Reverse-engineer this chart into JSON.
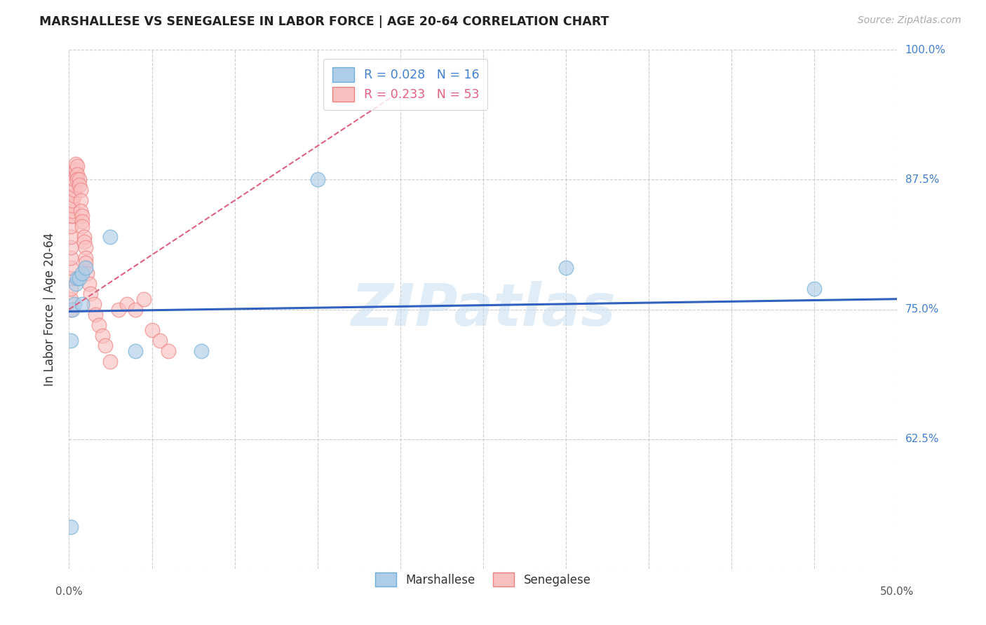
{
  "title": "MARSHALLESE VS SENEGALESE IN LABOR FORCE | AGE 20-64 CORRELATION CHART",
  "source": "Source: ZipAtlas.com",
  "ylabel": "In Labor Force | Age 20-64",
  "xlim": [
    0.0,
    0.5
  ],
  "ylim": [
    0.5,
    1.0
  ],
  "xticks": [
    0.0,
    0.05,
    0.1,
    0.15,
    0.2,
    0.25,
    0.3,
    0.35,
    0.4,
    0.45,
    0.5
  ],
  "yticks": [
    0.5,
    0.625,
    0.75,
    0.875,
    1.0
  ],
  "yticklabels": [
    "",
    "62.5%",
    "75.0%",
    "87.5%",
    "100.0%"
  ],
  "marshallese_color": "#6baed6",
  "marshallese_fill": "#aecde8",
  "senegalese_color": "#f08080",
  "senegalese_fill": "#f9c0c0",
  "blue_line_color": "#3060c0",
  "pink_line_color": "#e06080",
  "r_marshallese": "0.028",
  "n_marshallese": "16",
  "r_senegalese": "0.233",
  "n_senegalese": "53",
  "legend_color_marshallese": "#aecde8",
  "legend_color_senegalese": "#f9c0c0",
  "watermark": "ZIPatlas",
  "background_color": "#ffffff",
  "grid_color": "#cccccc",
  "marshallese_pts_x": [
    0.001,
    0.001,
    0.002,
    0.003,
    0.004,
    0.005,
    0.006,
    0.008,
    0.008,
    0.01,
    0.025,
    0.04,
    0.08,
    0.15,
    0.3,
    0.45
  ],
  "marshallese_pts_y": [
    0.54,
    0.72,
    0.75,
    0.755,
    0.775,
    0.78,
    0.78,
    0.785,
    0.755,
    0.79,
    0.82,
    0.71,
    0.71,
    0.875,
    0.79,
    0.77
  ],
  "senegalese_pts_x": [
    0.001,
    0.001,
    0.001,
    0.001,
    0.001,
    0.001,
    0.001,
    0.001,
    0.001,
    0.001,
    0.002,
    0.002,
    0.002,
    0.002,
    0.003,
    0.003,
    0.003,
    0.003,
    0.004,
    0.004,
    0.004,
    0.005,
    0.005,
    0.005,
    0.006,
    0.006,
    0.007,
    0.007,
    0.007,
    0.008,
    0.008,
    0.008,
    0.009,
    0.009,
    0.01,
    0.01,
    0.01,
    0.011,
    0.012,
    0.013,
    0.015,
    0.016,
    0.018,
    0.02,
    0.022,
    0.025,
    0.03,
    0.035,
    0.04,
    0.045,
    0.05,
    0.055,
    0.06
  ],
  "senegalese_pts_y": [
    0.75,
    0.76,
    0.77,
    0.78,
    0.79,
    0.8,
    0.81,
    0.82,
    0.83,
    0.84,
    0.84,
    0.845,
    0.85,
    0.855,
    0.86,
    0.865,
    0.87,
    0.875,
    0.88,
    0.885,
    0.89,
    0.888,
    0.88,
    0.875,
    0.875,
    0.87,
    0.865,
    0.855,
    0.845,
    0.84,
    0.835,
    0.83,
    0.82,
    0.815,
    0.81,
    0.8,
    0.795,
    0.785,
    0.775,
    0.765,
    0.755,
    0.745,
    0.735,
    0.725,
    0.715,
    0.7,
    0.75,
    0.755,
    0.75,
    0.76,
    0.73,
    0.72,
    0.71
  ],
  "mar_trend_x0": 0.0,
  "mar_trend_x1": 0.5,
  "mar_trend_y0": 0.748,
  "mar_trend_y1": 0.76,
  "sen_trend_x0": 0.0,
  "sen_trend_x1": 0.2,
  "sen_trend_y0": 0.75,
  "sen_trend_y1": 0.96
}
